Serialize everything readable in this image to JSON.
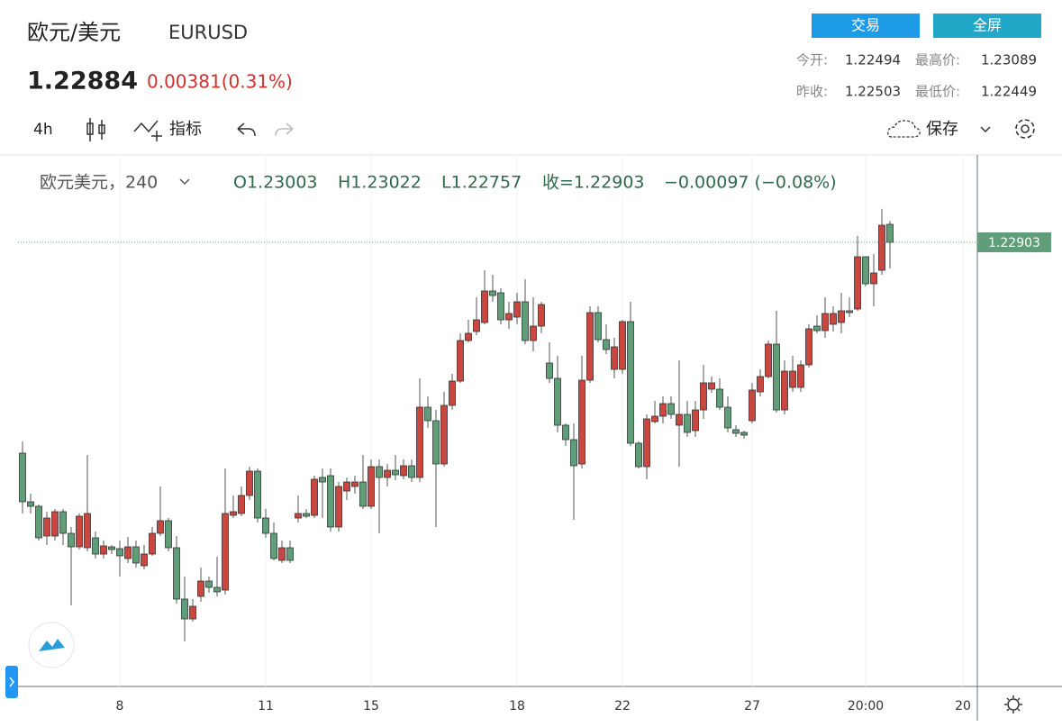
{
  "header": {
    "title": "欧元/美元",
    "symbol": "EURUSD",
    "price": "1.22884",
    "change": "0.00381(0.31%)",
    "buttons": [
      "交易",
      "全屏"
    ],
    "stats": [
      [
        "今开:",
        "1.22494",
        "最高价:",
        "1.23089"
      ],
      [
        "昨收:",
        "1.22503",
        "最低价:",
        "1.22449"
      ]
    ]
  },
  "toolbar": {
    "interval": "4h",
    "indicators": "指标",
    "save": "保存"
  },
  "legend": {
    "name": "欧元美元，240",
    "open": "O1.23003",
    "high": "H1.23022",
    "low": "L1.22757",
    "close": "收=1.22903",
    "change": "−0.00097 (−0.08%)"
  },
  "chart_data": {
    "type": "candlestick",
    "up_color": "#c9473f",
    "down_color": "#5f9e79",
    "ylim": [
      1.20438,
      1.23388
    ],
    "last_price": 1.22903,
    "categories": [
      null,
      null,
      null,
      null,
      null,
      null,
      null,
      null,
      null,
      null,
      null,
      null,
      "8",
      null,
      null,
      null,
      null,
      null,
      null,
      null,
      null,
      null,
      null,
      null,
      null,
      null,
      null,
      null,
      null,
      null,
      "11",
      null,
      null,
      null,
      null,
      null,
      null,
      null,
      null,
      null,
      null,
      null,
      null,
      "15",
      null,
      null,
      null,
      null,
      null,
      null,
      null,
      null,
      null,
      null,
      null,
      null,
      null,
      null,
      null,
      null,
      null,
      "18",
      null,
      null,
      null,
      null,
      null,
      null,
      null,
      null,
      null,
      null,
      null,
      null,
      "22",
      null,
      null,
      null,
      null,
      null,
      null,
      null,
      null,
      null,
      null,
      null,
      null,
      null,
      null,
      null,
      "27",
      null,
      null,
      null,
      null,
      null,
      null,
      null,
      null,
      null,
      null,
      null,
      null,
      null,
      "20:00",
      null,
      null,
      null,
      null,
      null,
      null,
      null,
      null,
      null,
      null,
      null,
      "20",
      null
    ],
    "open": [
      1.21733,
      1.21463,
      1.21438,
      1.21273,
      1.21273,
      1.21408,
      1.21288,
      1.21213,
      1.21208,
      1.21263,
      1.21173,
      1.21213,
      1.21203,
      1.21148,
      1.21213,
      1.21108,
      1.21173,
      1.21288,
      1.21358,
      1.21208,
      1.20923,
      1.20813,
      1.20938,
      1.21023,
      1.20988,
      1.20973,
      1.21388,
      1.21398,
      1.21498,
      1.21633,
      1.21373,
      1.21288,
      1.21138,
      1.21208,
      1.21373,
      1.21398,
      1.21388,
      1.21598,
      1.21608,
      1.21323,
      1.21523,
      1.21548,
      1.21573,
      1.21438,
      1.21658,
      1.21598,
      1.21638,
      1.21608,
      1.21663,
      1.21598,
      1.21988,
      1.21913,
      1.21673,
      1.21998,
      1.22133,
      1.22358,
      1.22408,
      1.22458,
      1.22633,
      1.22623,
      1.22473,
      1.22488,
      1.22573,
      1.22358,
      1.22438,
      1.22233,
      1.22148,
      1.21888,
      1.21808,
      1.21673,
      1.22138,
      1.22513,
      1.22363,
      1.22198,
      1.22198,
      1.22463,
      1.21788,
      1.21658,
      1.21908,
      1.21938,
      1.22008,
      1.21888,
      1.21948,
      1.21858,
      1.21973,
      1.22088,
      1.22088,
      1.21988,
      1.21863,
      1.21848,
      1.21913,
      1.22073,
      1.22158,
      1.22338,
      1.21973,
      1.22098,
      1.22098,
      1.22223,
      1.22438,
      1.22413,
      1.22448,
      1.22458,
      1.22523,
      1.22533,
      1.22823,
      1.22673,
      1.22748,
      1.23003,
      null,
      null,
      null,
      null,
      null,
      null,
      null,
      null,
      null,
      null
    ],
    "high": [
      1.21798,
      1.21508,
      1.21448,
      1.21408,
      1.21423,
      1.21423,
      1.21323,
      1.21398,
      1.21723,
      1.21298,
      1.21248,
      1.21223,
      1.21248,
      1.21268,
      1.21248,
      1.21223,
      1.21323,
      1.21548,
      1.21373,
      1.21273,
      1.21048,
      1.20923,
      1.21098,
      1.21048,
      1.21158,
      1.21648,
      1.21498,
      1.21548,
      1.21658,
      1.21648,
      1.21423,
      1.21348,
      1.21248,
      1.21248,
      1.21498,
      1.21423,
      1.21608,
      1.21648,
      1.21648,
      1.21573,
      1.21598,
      1.21608,
      1.21723,
      1.21698,
      1.21698,
      1.21673,
      1.21723,
      1.21698,
      1.21698,
      1.22148,
      1.22048,
      1.21973,
      1.22073,
      1.22173,
      1.22398,
      1.22473,
      1.22598,
      1.22748,
      1.22723,
      1.22648,
      1.22573,
      1.22623,
      1.22698,
      1.22598,
      1.22573,
      1.22348,
      1.22273,
      1.21898,
      1.21898,
      1.22273,
      1.22548,
      1.22548,
      1.22448,
      1.22373,
      1.22473,
      1.22573,
      1.21798,
      1.21948,
      1.22023,
      1.22048,
      1.22048,
      1.22248,
      1.22023,
      1.22023,
      1.22223,
      1.22158,
      1.22148,
      1.22048,
      1.21888,
      1.21858,
      1.22123,
      1.22198,
      1.22358,
      1.22523,
      1.22248,
      1.22273,
      1.22248,
      1.22448,
      1.22498,
      1.22598,
      1.22548,
      1.22623,
      1.22598,
      1.22938,
      1.22823,
      1.22838,
      1.23089,
      1.23022,
      null,
      null,
      null,
      null,
      null,
      null,
      null,
      null,
      null,
      null
    ],
    "low": [
      1.21398,
      1.21398,
      1.21248,
      1.21223,
      1.21248,
      1.21223,
      1.20888,
      1.21198,
      1.21188,
      1.21148,
      1.21148,
      1.21173,
      1.21048,
      1.21123,
      1.21098,
      1.21088,
      1.21163,
      1.21273,
      1.21188,
      1.20898,
      1.20688,
      1.20798,
      1.20908,
      1.20958,
      1.20938,
      1.20948,
      1.21373,
      1.21383,
      1.21473,
      1.21348,
      1.21263,
      1.21138,
      1.21123,
      1.21123,
      1.21348,
      1.21373,
      1.21373,
      1.21373,
      1.21298,
      1.21298,
      1.21473,
      1.21508,
      1.21423,
      1.21423,
      1.21288,
      1.21548,
      1.21583,
      1.21588,
      1.21573,
      1.21573,
      1.21873,
      1.21323,
      1.21658,
      1.21973,
      1.22123,
      1.22348,
      1.22388,
      1.22448,
      1.22573,
      1.22448,
      1.22423,
      1.22448,
      1.22338,
      1.22298,
      1.22398,
      1.22123,
      1.21848,
      1.21773,
      1.21363,
      1.21648,
      1.22123,
      1.22348,
      1.22283,
      1.22148,
      1.22173,
      1.21773,
      1.21648,
      1.21588,
      1.21898,
      1.21898,
      1.21923,
      1.21658,
      1.21823,
      1.21823,
      1.21923,
      1.22068,
      1.21973,
      1.21848,
      1.21823,
      1.21813,
      1.21898,
      1.22048,
      1.22148,
      1.21958,
      1.21948,
      1.22073,
      1.22073,
      1.22208,
      1.22398,
      1.22373,
      1.22408,
      1.22398,
      1.22488,
      1.22523,
      1.22658,
      1.22548,
      1.22723,
      1.22757,
      null,
      null,
      null,
      null,
      null,
      null,
      null,
      null,
      null,
      null
    ],
    "close": [
      1.21463,
      1.21438,
      1.21263,
      1.21373,
      1.21408,
      1.21288,
      1.21213,
      1.21383,
      1.21398,
      1.21173,
      1.21218,
      1.21198,
      1.21163,
      1.21213,
      1.21123,
      1.21173,
      1.21288,
      1.21358,
      1.21208,
      1.20923,
      1.20813,
      1.20883,
      1.21023,
      1.20988,
      1.20963,
      1.21398,
      1.21408,
      1.21498,
      1.21633,
      1.21373,
      1.21288,
      1.21148,
      1.21208,
      1.21138,
      1.21398,
      1.21383,
      1.21588,
      1.21573,
      1.21323,
      1.21548,
      1.21573,
      1.21573,
      1.21438,
      1.21658,
      1.21598,
      1.21638,
      1.21613,
      1.21663,
      1.21598,
      1.21988,
      1.21913,
      1.21673,
      1.21998,
      1.22133,
      1.22358,
      1.22398,
      1.22473,
      1.22633,
      1.22608,
      1.22473,
      1.22508,
      1.22573,
      1.22358,
      1.22438,
      1.22558,
      1.22148,
      1.21888,
      1.21808,
      1.21663,
      1.22138,
      1.22513,
      1.22363,
      1.22308,
      1.22323,
      1.22463,
      1.21788,
      1.21658,
      1.21923,
      1.21938,
      1.22008,
      1.21948,
      1.21948,
      1.21848,
      1.21973,
      1.22123,
      1.22123,
      1.21988,
      1.21873,
      1.21843,
      1.21833,
      1.22083,
      1.22158,
      1.22338,
      1.21973,
      1.22188,
      1.22188,
      1.22223,
      1.22423,
      1.22413,
      1.22508,
      1.22508,
      1.22523,
      1.22513,
      1.22823,
      1.22673,
      1.22733,
      1.22998,
      1.22903,
      null,
      null,
      null,
      null,
      null,
      null,
      null,
      null,
      null,
      null
    ]
  }
}
